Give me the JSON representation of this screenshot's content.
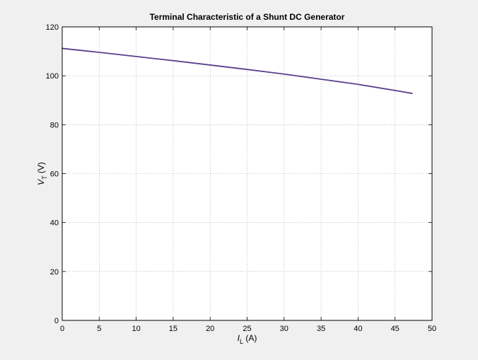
{
  "chart_data": {
    "type": "line",
    "title": "Terminal Characteristic of a Shunt DC Generator",
    "xlabel": {
      "main": "I",
      "sub": "L",
      "unit": " (A)"
    },
    "ylabel": {
      "main": "V",
      "sub": "T",
      "unit": " (V)"
    },
    "xlim": [
      0,
      50
    ],
    "ylim": [
      0,
      120
    ],
    "xticks": [
      "0",
      "5",
      "10",
      "15",
      "20",
      "25",
      "30",
      "35",
      "40",
      "45",
      "50"
    ],
    "yticks": [
      "0",
      "20",
      "40",
      "60",
      "80",
      "100",
      "120"
    ],
    "grid": true,
    "series": [
      {
        "color": "#5a3f8a",
        "x": [
          0,
          5,
          10,
          15,
          20,
          25,
          30,
          35,
          40,
          45,
          47.3
        ],
        "y": [
          111.2,
          109.6,
          107.9,
          106.2,
          104.4,
          102.6,
          100.7,
          98.6,
          96.5,
          94.0,
          92.8
        ]
      }
    ]
  }
}
